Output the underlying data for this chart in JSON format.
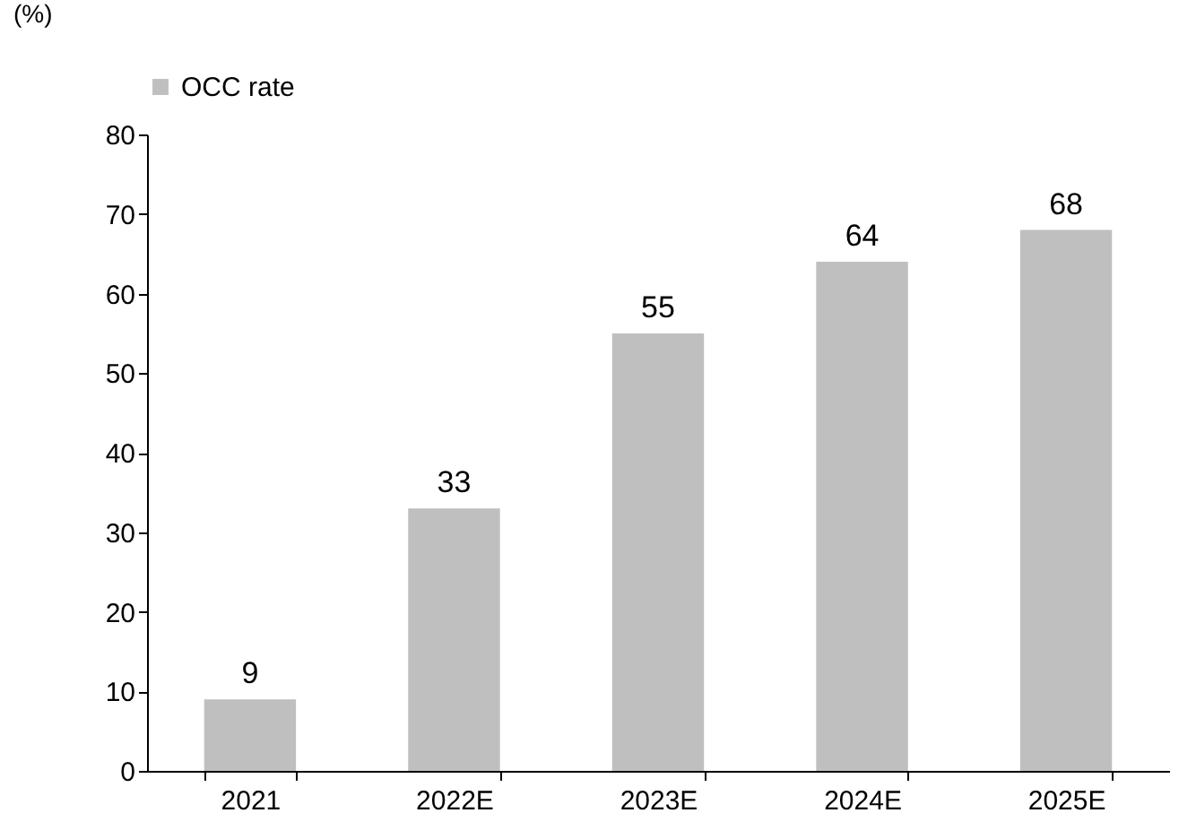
{
  "chart_data": {
    "type": "bar",
    "ylabel": "(%)",
    "categories": [
      "2021",
      "2022E",
      "2023E",
      "2024E",
      "2025E"
    ],
    "series": [
      {
        "name": "OCC rate",
        "color": "#bfbfbf",
        "values": [
          9,
          33,
          55,
          64,
          68
        ]
      }
    ],
    "ylim": [
      0,
      80
    ],
    "yticks": [
      0,
      10,
      20,
      30,
      40,
      50,
      60,
      70,
      80
    ],
    "grid": false,
    "legend": "top",
    "data_labels": true
  }
}
